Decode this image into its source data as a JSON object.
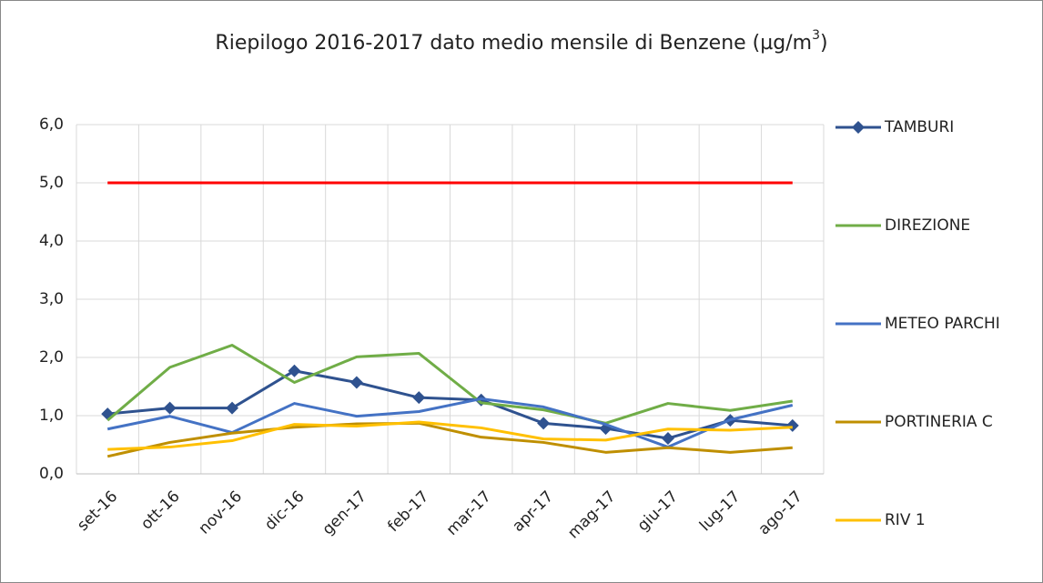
{
  "chart_data": {
    "type": "line",
    "title": "Riepilogo 2016-2017 dato medio mensile di Benzene (µg/m",
    "title_superscript": "3",
    "title_end": ")",
    "categories": [
      "set-16",
      "ott-16",
      "nov-16",
      "dic-16",
      "gen-17",
      "feb-17",
      "mar-17",
      "apr-17",
      "mag-17",
      "giu-17",
      "lug-17",
      "ago-17"
    ],
    "series": [
      {
        "name": "TAMBURI",
        "color": "#2f528f",
        "marker": "diamond",
        "values": [
          1.03,
          1.13,
          1.13,
          1.77,
          1.57,
          1.31,
          1.27,
          0.87,
          0.78,
          0.61,
          0.92,
          0.83
        ]
      },
      {
        "name": "DIREZIONE",
        "color": "#70ad47",
        "values": [
          0.92,
          1.83,
          2.21,
          1.57,
          2.01,
          2.07,
          1.22,
          1.1,
          0.87,
          1.21,
          1.09,
          1.25
        ]
      },
      {
        "name": "METEO PARCHI",
        "color": "#4472c4",
        "values": [
          0.77,
          0.99,
          0.71,
          1.21,
          0.99,
          1.07,
          1.29,
          1.15,
          0.85,
          0.46,
          0.93,
          1.18
        ]
      },
      {
        "name": "PORTINERIA C",
        "color": "#bf8f00",
        "values": [
          0.3,
          0.54,
          0.7,
          0.8,
          0.86,
          0.87,
          0.63,
          0.54,
          0.37,
          0.45,
          0.37,
          0.45
        ]
      },
      {
        "name": "RIV 1",
        "color": "#ffc000",
        "values": [
          0.42,
          0.46,
          0.57,
          0.85,
          0.82,
          0.89,
          0.79,
          0.6,
          0.58,
          0.77,
          0.75,
          0.8
        ]
      }
    ],
    "threshold": {
      "value": 5,
      "color": "#ff0000"
    },
    "ylim": [
      0,
      6
    ],
    "yticks": [
      {
        "value": 0,
        "label": "0,0"
      },
      {
        "value": 1,
        "label": "1,0"
      },
      {
        "value": 2,
        "label": "2,0"
      },
      {
        "value": 3,
        "label": "3,0"
      },
      {
        "value": 4,
        "label": "4,0"
      },
      {
        "value": 5,
        "label": "5,0"
      },
      {
        "value": 6,
        "label": "6,0"
      }
    ],
    "grid": true,
    "legend": "right"
  }
}
